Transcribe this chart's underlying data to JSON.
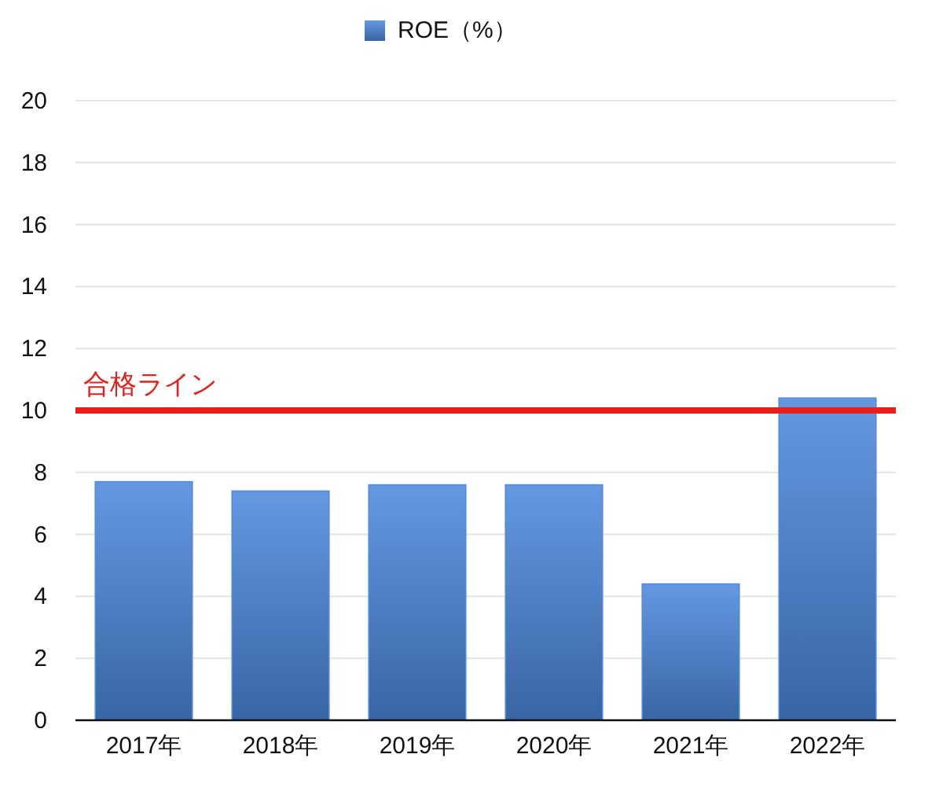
{
  "chart_data": {
    "type": "bar",
    "categories": [
      "2017年",
      "2018年",
      "2019年",
      "2020年",
      "2021年",
      "2022年"
    ],
    "series": [
      {
        "name": "ROE（%）",
        "color": "#4a86dc",
        "values": [
          7.7,
          7.4,
          7.6,
          7.6,
          4.4,
          10.4
        ]
      }
    ],
    "ylim": [
      0,
      20
    ],
    "yticks": [
      0,
      2,
      4,
      6,
      8,
      10,
      12,
      14,
      16,
      18,
      20
    ],
    "grid": "y",
    "legend": "top",
    "ref_lines": [
      {
        "axis": "y",
        "value": 10,
        "label": "合格ライン",
        "color": "#e8201c"
      }
    ]
  }
}
